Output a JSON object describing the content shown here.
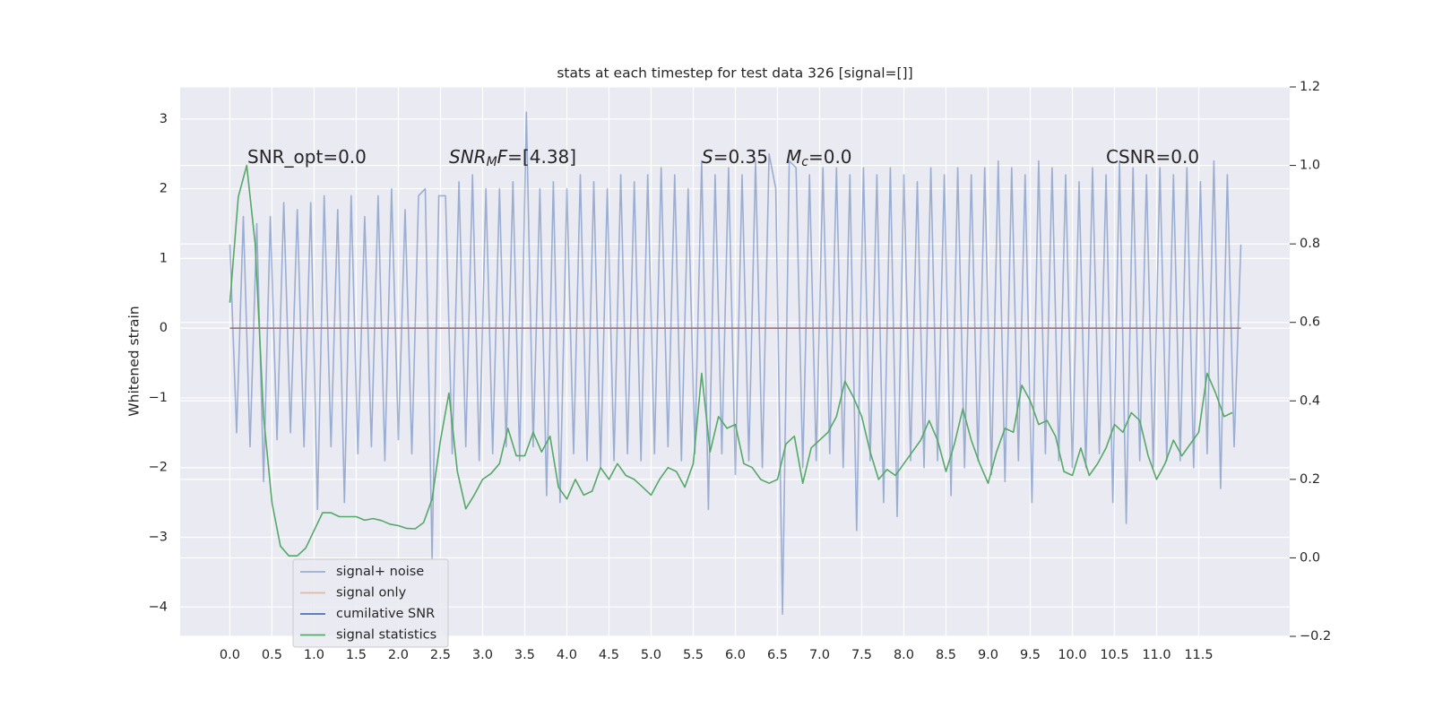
{
  "chart_data": {
    "type": "line",
    "title": "stats at each timestep for test data 326 [signal=[]]",
    "ylabel": "Whitened strain",
    "xlim": [
      -0.59,
      12.58
    ],
    "ylim": [
      -4.42,
      3.46
    ],
    "y2lim": [
      -0.2,
      1.2
    ],
    "grid": true,
    "legend": "lower left",
    "xticks": [
      {
        "value": 0,
        "label": "0.0"
      },
      {
        "value": 0.5,
        "label": "0.5"
      },
      {
        "value": 1,
        "label": "1.0"
      },
      {
        "value": 1.5,
        "label": "1.5"
      },
      {
        "value": 2,
        "label": "2.0"
      },
      {
        "value": 2.5,
        "label": "2.5"
      },
      {
        "value": 3,
        "label": "3.0"
      },
      {
        "value": 3.5,
        "label": "3.5"
      },
      {
        "value": 4,
        "label": "4.0"
      },
      {
        "value": 4.5,
        "label": "4.5"
      },
      {
        "value": 5,
        "label": "5.0"
      },
      {
        "value": 5.5,
        "label": "5.5"
      },
      {
        "value": 6,
        "label": "6.0"
      },
      {
        "value": 6.5,
        "label": "6.5"
      },
      {
        "value": 7,
        "label": "7.0"
      },
      {
        "value": 7.5,
        "label": "7.5"
      },
      {
        "value": 8,
        "label": "8.0"
      },
      {
        "value": 8.5,
        "label": "8.5"
      },
      {
        "value": 9,
        "label": "9.0"
      },
      {
        "value": 9.5,
        "label": "9.5"
      },
      {
        "value": 10,
        "label": "10.0"
      },
      {
        "value": 10.5,
        "label": "10.5"
      },
      {
        "value": 11,
        "label": "11.0"
      },
      {
        "value": 11.5,
        "label": "11.5"
      }
    ],
    "yticks": [
      {
        "value": -4,
        "label": "−4"
      },
      {
        "value": -3,
        "label": "−3"
      },
      {
        "value": -2,
        "label": "−2"
      },
      {
        "value": -1,
        "label": "−1"
      },
      0,
      1,
      2,
      3
    ],
    "y2ticks": [
      {
        "value": -0.2,
        "label": "−0.2"
      },
      {
        "value": 0,
        "label": "0.0"
      },
      0.2,
      0.4,
      0.6,
      0.8,
      {
        "value": 1,
        "label": "1.0"
      },
      1.2
    ],
    "annotations": [
      {
        "parts": [
          {
            "text": "SNR_opt=0.0"
          }
        ]
      },
      {
        "parts": [
          {
            "text": "SNR",
            "italic": true
          },
          {
            "text": "M",
            "italic": true,
            "sub": true
          },
          {
            "text": "F",
            "italic": true
          },
          {
            "text": "=[4.38]"
          }
        ]
      },
      {
        "parts": [
          {
            "text": "S",
            "italic": true
          },
          {
            "text": "=0.35"
          }
        ]
      },
      {
        "parts": [
          {
            "text": "M",
            "italic": true
          },
          {
            "text": "c",
            "italic": true,
            "sub": true
          },
          {
            "text": "=0.0"
          }
        ]
      },
      {
        "parts": [
          {
            "text": "CSNR=0.0"
          }
        ]
      }
    ],
    "series": [
      {
        "name": "signal+ noise",
        "color": "#4c72b0",
        "alpha": 0.5,
        "x": [
          0,
          0.08,
          0.16,
          0.24,
          0.32,
          0.4,
          0.48,
          0.56,
          0.64,
          0.72,
          0.8,
          0.88,
          0.96,
          1.04,
          1.12,
          1.2,
          1.28,
          1.36,
          1.44,
          1.52,
          1.6,
          1.68,
          1.76,
          1.84,
          1.92,
          2,
          2.08,
          2.16,
          2.24,
          2.32,
          2.4,
          2.48,
          2.56,
          2.64,
          2.72,
          2.8,
          2.88,
          2.96,
          3.04,
          3.12,
          3.2,
          3.28,
          3.36,
          3.44,
          3.52,
          3.6,
          3.68,
          3.76,
          3.84,
          3.92,
          4,
          4.08,
          4.16,
          4.24,
          4.32,
          4.4,
          4.48,
          4.56,
          4.64,
          4.72,
          4.8,
          4.88,
          4.96,
          5.04,
          5.12,
          5.2,
          5.28,
          5.36,
          5.44,
          5.52,
          5.6,
          5.68,
          5.76,
          5.84,
          5.92,
          6,
          6.08,
          6.16,
          6.24,
          6.32,
          6.4,
          6.48,
          6.56,
          6.64,
          6.72,
          6.8,
          6.88,
          6.96,
          7.04,
          7.12,
          7.2,
          7.28,
          7.36,
          7.44,
          7.52,
          7.6,
          7.68,
          7.76,
          7.84,
          7.92,
          8,
          8.08,
          8.16,
          8.24,
          8.32,
          8.4,
          8.48,
          8.56,
          8.64,
          8.72,
          8.8,
          8.88,
          8.96,
          9.04,
          9.12,
          9.2,
          9.28,
          9.36,
          9.44,
          9.52,
          9.6,
          9.68,
          9.76,
          9.84,
          9.92,
          10,
          10.08,
          10.16,
          10.24,
          10.32,
          10.4,
          10.48,
          10.56,
          10.64,
          10.72,
          10.8,
          10.88,
          10.96,
          11.04,
          11.12,
          11.2,
          11.28,
          11.36,
          11.44,
          11.52,
          11.6,
          11.68,
          11.76,
          11.84,
          11.92,
          12
        ],
        "values": [
          1.2,
          -1.5,
          1.6,
          -1.7,
          1.5,
          -2.2,
          1.6,
          -1.6,
          1.8,
          -1.5,
          1.7,
          -1.7,
          1.8,
          -2.6,
          1.9,
          -1.7,
          1.7,
          -2.5,
          1.9,
          -1.8,
          1.6,
          -1.7,
          1.9,
          -1.9,
          2.0,
          -1.6,
          1.7,
          -1.8,
          1.9,
          2.0,
          -3.3,
          1.9,
          1.9,
          -1.8,
          2.1,
          -1.7,
          2.2,
          -1.9,
          2.0,
          -1.8,
          2.0,
          -1.7,
          2.1,
          -1.9,
          3.1,
          -1.7,
          2.0,
          -2.4,
          2.1,
          -2.5,
          2.0,
          -1.8,
          2.2,
          -1.9,
          2.1,
          -2.0,
          2.0,
          -1.9,
          2.2,
          -1.8,
          2.1,
          -1.9,
          2.2,
          -1.8,
          2.3,
          -1.7,
          2.2,
          -1.9,
          2.0,
          -1.8,
          2.4,
          -2.6,
          2.2,
          -1.8,
          2.3,
          -2.1,
          2.2,
          -1.9,
          2.4,
          -2.0,
          2.5,
          2.0,
          -4.1,
          2.4,
          2.3,
          -2.0,
          2.2,
          -1.9,
          2.3,
          -1.8,
          2.3,
          -2.0,
          2.2,
          -2.9,
          2.3,
          -1.9,
          2.2,
          -2.5,
          2.3,
          -2.7,
          2.2,
          -1.9,
          2.1,
          -2.0,
          2.3,
          -1.9,
          2.2,
          -2.4,
          2.3,
          -2.0,
          2.2,
          -1.9,
          2.3,
          -2.1,
          2.4,
          -2.2,
          2.3,
          -1.9,
          2.2,
          -2.5,
          2.4,
          -1.8,
          2.3,
          -1.9,
          2.2,
          -2.0,
          2.1,
          -2.0,
          2.3,
          -1.8,
          2.2,
          -2.5,
          2.4,
          -2.8,
          2.3,
          -1.9,
          2.2,
          -2.0,
          2.3,
          -1.9,
          2.2,
          -1.9,
          2.3,
          -2.0,
          2.1,
          -1.8,
          2.4,
          -2.3,
          2.2,
          -1.7,
          1.2
        ]
      },
      {
        "name": "signal only",
        "color": "#dd8452",
        "alpha": 0.5,
        "x": [
          0,
          12
        ],
        "values": [
          0,
          0
        ]
      },
      {
        "name": "cumilative SNR",
        "color": "#4c72b0",
        "alpha": 1,
        "x": [
          0,
          12
        ],
        "values": [
          0,
          0
        ]
      },
      {
        "name": "signal statistics",
        "color": "#55a868",
        "alpha": 1,
        "axis": "y2",
        "x": [
          0,
          0.1,
          0.2,
          0.3,
          0.4,
          0.5,
          0.6,
          0.7,
          0.8,
          0.9,
          1,
          1.1,
          1.2,
          1.3,
          1.4,
          1.5,
          1.6,
          1.7,
          1.8,
          1.9,
          2,
          2.1,
          2.2,
          2.3,
          2.4,
          2.5,
          2.6,
          2.7,
          2.8,
          2.9,
          3,
          3.1,
          3.2,
          3.3,
          3.4,
          3.5,
          3.6,
          3.7,
          3.8,
          3.9,
          4,
          4.1,
          4.2,
          4.3,
          4.4,
          4.5,
          4.6,
          4.7,
          4.8,
          4.9,
          5,
          5.1,
          5.2,
          5.3,
          5.4,
          5.5,
          5.6,
          5.7,
          5.8,
          5.9,
          6,
          6.1,
          6.2,
          6.3,
          6.4,
          6.5,
          6.6,
          6.7,
          6.8,
          6.9,
          7,
          7.1,
          7.2,
          7.3,
          7.4,
          7.5,
          7.6,
          7.7,
          7.8,
          7.9,
          8,
          8.1,
          8.2,
          8.3,
          8.4,
          8.5,
          8.6,
          8.7,
          8.8,
          8.9,
          9,
          9.1,
          9.2,
          9.3,
          9.4,
          9.5,
          9.6,
          9.7,
          9.8,
          9.9,
          10,
          10.1,
          10.2,
          10.3,
          10.4,
          10.5,
          10.6,
          10.7,
          10.8,
          10.9,
          11,
          11.1,
          11.2,
          11.3,
          11.4,
          11.5,
          11.6,
          11.7,
          11.8,
          11.9
        ],
        "values": [
          0.65,
          0.92,
          1.0,
          0.8,
          0.36,
          0.14,
          0.03,
          0.005,
          0.005,
          0.025,
          0.07,
          0.115,
          0.115,
          0.105,
          0.105,
          0.105,
          0.096,
          0.1,
          0.095,
          0.086,
          0.082,
          0.075,
          0.074,
          0.09,
          0.15,
          0.3,
          0.42,
          0.22,
          0.125,
          0.16,
          0.2,
          0.215,
          0.24,
          0.33,
          0.26,
          0.26,
          0.32,
          0.27,
          0.31,
          0.18,
          0.15,
          0.2,
          0.16,
          0.17,
          0.23,
          0.2,
          0.24,
          0.21,
          0.2,
          0.18,
          0.16,
          0.2,
          0.23,
          0.22,
          0.18,
          0.24,
          0.47,
          0.27,
          0.36,
          0.33,
          0.34,
          0.24,
          0.23,
          0.2,
          0.19,
          0.2,
          0.29,
          0.31,
          0.19,
          0.28,
          0.3,
          0.32,
          0.36,
          0.45,
          0.41,
          0.36,
          0.27,
          0.2,
          0.225,
          0.21,
          0.24,
          0.27,
          0.3,
          0.35,
          0.3,
          0.22,
          0.29,
          0.38,
          0.3,
          0.24,
          0.19,
          0.27,
          0.33,
          0.32,
          0.44,
          0.4,
          0.34,
          0.35,
          0.31,
          0.22,
          0.21,
          0.28,
          0.21,
          0.24,
          0.28,
          0.34,
          0.32,
          0.37,
          0.35,
          0.26,
          0.2,
          0.24,
          0.3,
          0.26,
          0.29,
          0.32,
          0.47,
          0.42,
          0.36,
          0.37
        ]
      }
    ]
  }
}
